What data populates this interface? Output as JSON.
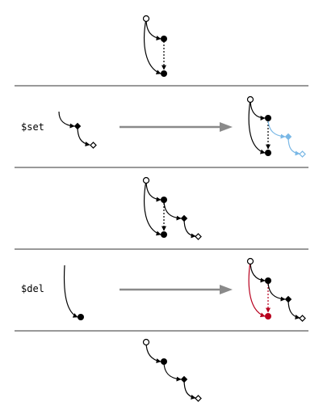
{
  "diagram": {
    "operations": [
      {
        "label": "$set",
        "color": "#7ab8e6"
      },
      {
        "label": "$del",
        "color": "#b8001e"
      }
    ],
    "colors": {
      "line": "#000000",
      "arrow": "#8a8a8a",
      "separator": "#333333",
      "set_highlight": "#7ab8e6",
      "del_highlight": "#b8001e"
    }
  }
}
